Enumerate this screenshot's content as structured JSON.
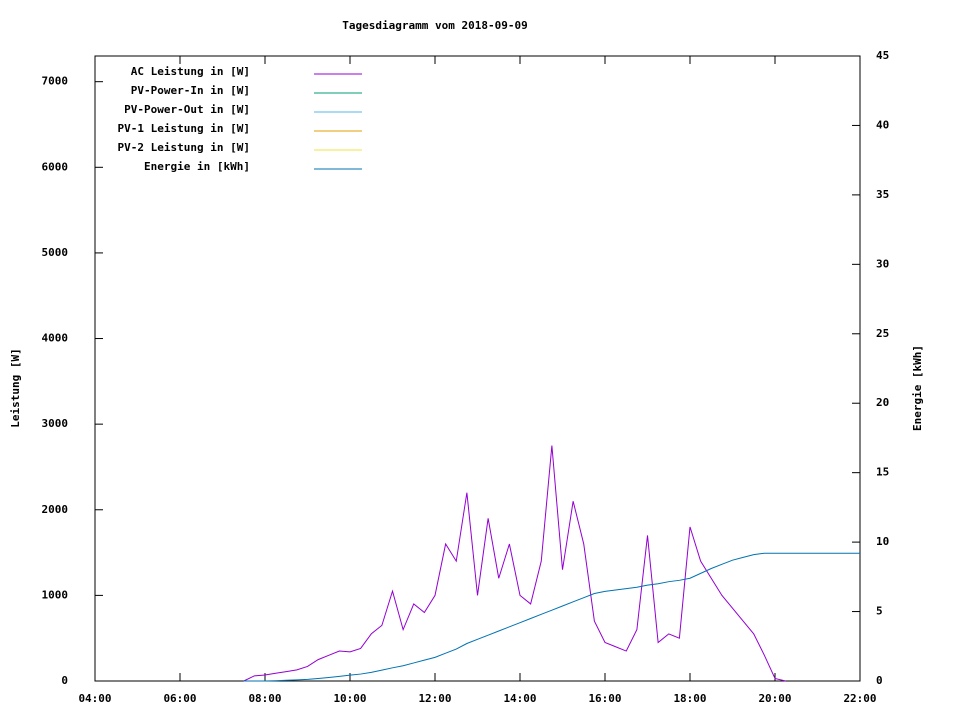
{
  "chart_data": {
    "type": "line",
    "title": "Tagesdiagramm vom 2018-09-09",
    "ylabel": "Leistung [W]",
    "y2label": "Energie [kWh]",
    "x": [
      7.5,
      7.75,
      8,
      8.25,
      8.5,
      8.75,
      9,
      9.25,
      9.5,
      9.75,
      10,
      10.25,
      10.5,
      10.75,
      11,
      11.25,
      11.5,
      11.75,
      12,
      12.25,
      12.5,
      12.75,
      13,
      13.25,
      13.5,
      13.75,
      14,
      14.25,
      14.5,
      14.75,
      15,
      15.25,
      15.5,
      15.75,
      16,
      16.25,
      16.5,
      16.75,
      17,
      17.25,
      17.5,
      17.75,
      18,
      18.25,
      18.5,
      18.75,
      19,
      19.25,
      19.5,
      19.75,
      20,
      20.25,
      20.5,
      20.75,
      21,
      21.25,
      21.5,
      21.75,
      22
    ],
    "xlim": [
      4,
      22
    ],
    "xticks": [
      {
        "value": 4,
        "label": "04:00"
      },
      {
        "value": 6,
        "label": "06:00"
      },
      {
        "value": 8,
        "label": "08:00"
      },
      {
        "value": 10,
        "label": "10:00"
      },
      {
        "value": 12,
        "label": "12:00"
      },
      {
        "value": 14,
        "label": "14:00"
      },
      {
        "value": 16,
        "label": "16:00"
      },
      {
        "value": 18,
        "label": "18:00"
      },
      {
        "value": 20,
        "label": "20:00"
      },
      {
        "value": 22,
        "label": "22:00"
      }
    ],
    "ylim": [
      0,
      7300
    ],
    "yticks": [
      0,
      1000,
      2000,
      3000,
      4000,
      5000,
      6000,
      7000
    ],
    "y2lim": [
      0,
      45
    ],
    "y2ticks": [
      0,
      5,
      10,
      15,
      20,
      25,
      30,
      35,
      40,
      45
    ],
    "legend": "top-left",
    "series": [
      {
        "name": "AC Leistung in [W]",
        "color": "#9400d3",
        "values": [
          0,
          60,
          70,
          90,
          110,
          130,
          170,
          250,
          300,
          350,
          340,
          380,
          550,
          650,
          1050,
          600,
          900,
          800,
          1000,
          1600,
          1400,
          2200,
          1000,
          1900,
          1200,
          1600,
          1000,
          900,
          1400,
          2750,
          1300,
          2100,
          1600,
          700,
          450,
          400,
          350,
          600,
          1700,
          450,
          550,
          500,
          1800,
          1400,
          1200,
          1000,
          850,
          700,
          550,
          300,
          30,
          0,
          null,
          null,
          null,
          null,
          null,
          null,
          null
        ]
      },
      {
        "name": "PV-Power-In in [W]",
        "color": "#009e73",
        "values": [
          null,
          null,
          null,
          null,
          null,
          null,
          null,
          null,
          null,
          null,
          null,
          null,
          null,
          null,
          null,
          null,
          null,
          null,
          null,
          null,
          null,
          null,
          null,
          null,
          null,
          null,
          null,
          null,
          null,
          null,
          null,
          null,
          null,
          null,
          null,
          null,
          null,
          null,
          null,
          null,
          null,
          null,
          null,
          null,
          null,
          null,
          null,
          null,
          null,
          null,
          null,
          null,
          null,
          null,
          null,
          null,
          null,
          null,
          null
        ]
      },
      {
        "name": "PV-Power-Out in [W]",
        "color": "#56b4e9",
        "values": [
          null,
          null,
          null,
          null,
          null,
          null,
          null,
          null,
          null,
          null,
          null,
          null,
          null,
          null,
          null,
          null,
          null,
          null,
          null,
          null,
          null,
          null,
          null,
          null,
          null,
          null,
          null,
          null,
          null,
          null,
          null,
          null,
          null,
          null,
          null,
          null,
          null,
          null,
          null,
          null,
          null,
          null,
          null,
          null,
          null,
          null,
          null,
          null,
          null,
          null,
          null,
          null,
          null,
          null,
          null,
          null,
          null,
          null,
          null
        ]
      },
      {
        "name": "PV-1 Leistung in [W]",
        "color": "#e69f00",
        "values": [
          null,
          null,
          null,
          null,
          null,
          null,
          null,
          null,
          null,
          null,
          null,
          null,
          null,
          null,
          null,
          null,
          null,
          null,
          null,
          null,
          null,
          null,
          null,
          null,
          null,
          null,
          null,
          null,
          null,
          null,
          null,
          null,
          null,
          null,
          null,
          null,
          null,
          null,
          null,
          null,
          null,
          null,
          null,
          null,
          null,
          null,
          null,
          null,
          null,
          null,
          null,
          null,
          null,
          null,
          null,
          null,
          null,
          null,
          null
        ]
      },
      {
        "name": "PV-2 Leistung in [W]",
        "color": "#f0e442",
        "values": [
          null,
          null,
          null,
          null,
          null,
          null,
          null,
          null,
          null,
          null,
          null,
          null,
          null,
          null,
          null,
          null,
          null,
          null,
          null,
          null,
          null,
          null,
          null,
          null,
          null,
          null,
          null,
          null,
          null,
          null,
          null,
          null,
          null,
          null,
          null,
          null,
          null,
          null,
          null,
          null,
          null,
          null,
          null,
          null,
          null,
          null,
          null,
          null,
          null,
          null,
          null,
          null,
          null,
          null,
          null,
          null,
          null,
          null,
          null
        ]
      },
      {
        "name": "Energie in [kWh]",
        "color": "#0072b2",
        "axis": "y2",
        "values": [
          0,
          0,
          0,
          0.02,
          0.05,
          0.08,
          0.12,
          0.18,
          0.25,
          0.33,
          0.42,
          0.5,
          0.62,
          0.78,
          0.95,
          1.1,
          1.3,
          1.5,
          1.7,
          2.0,
          2.3,
          2.7,
          3.0,
          3.3,
          3.6,
          3.9,
          4.2,
          4.5,
          4.8,
          5.1,
          5.4,
          5.7,
          6.0,
          6.3,
          6.45,
          6.55,
          6.65,
          6.75,
          6.9,
          7.0,
          7.15,
          7.25,
          7.4,
          7.75,
          8.1,
          8.4,
          8.7,
          8.9,
          9.1,
          9.2,
          9.2,
          9.2,
          9.2,
          9.2,
          9.2,
          9.2,
          9.2,
          9.2,
          9.2
        ]
      }
    ]
  }
}
